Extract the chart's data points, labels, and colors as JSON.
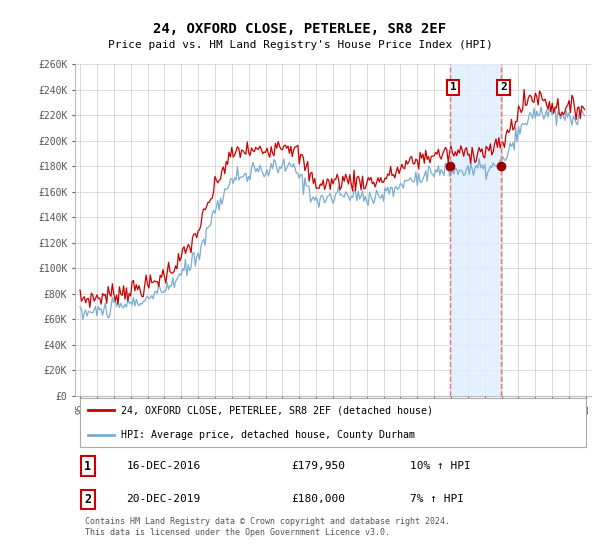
{
  "title": "24, OXFORD CLOSE, PETERLEE, SR8 2EF",
  "subtitle": "Price paid vs. HM Land Registry's House Price Index (HPI)",
  "legend_line1": "24, OXFORD CLOSE, PETERLEE, SR8 2EF (detached house)",
  "legend_line2": "HPI: Average price, detached house, County Durham",
  "annotation1_label": "1",
  "annotation1_date": "16-DEC-2016",
  "annotation1_price": "£179,950",
  "annotation1_hpi": "10% ↑ HPI",
  "annotation2_label": "2",
  "annotation2_date": "20-DEC-2019",
  "annotation2_price": "£180,000",
  "annotation2_hpi": "7% ↑ HPI",
  "footnote": "Contains HM Land Registry data © Crown copyright and database right 2024.\nThis data is licensed under the Open Government Licence v3.0.",
  "red_color": "#cc0000",
  "blue_color": "#7aadcf",
  "shade_color": "#ddeeff",
  "dashed_color": "#e87878",
  "ylim": [
    0,
    260000
  ],
  "yticks": [
    0,
    20000,
    40000,
    60000,
    80000,
    100000,
    120000,
    140000,
    160000,
    180000,
    200000,
    220000,
    240000,
    260000
  ],
  "ytick_labels": [
    "£0",
    "£20K",
    "£40K",
    "£60K",
    "£80K",
    "£100K",
    "£120K",
    "£140K",
    "£160K",
    "£180K",
    "£200K",
    "£220K",
    "£240K",
    "£260K"
  ],
  "xlim_start": 1994.7,
  "xlim_end": 2025.3,
  "point1_x": 2016.96,
  "point1_y": 179950,
  "point2_x": 2019.96,
  "point2_y": 180000,
  "vline1_x": 2016.96,
  "vline2_x": 2019.96,
  "shade_x1": 2016.96,
  "shade_x2": 2019.96
}
